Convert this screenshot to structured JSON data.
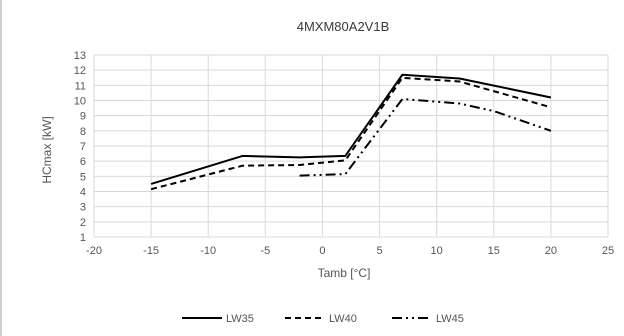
{
  "chart_data": {
    "type": "line",
    "title": "4MXM80A2V1B",
    "xlabel": "Tamb [°C]",
    "ylabel": "HCmax [kW]",
    "xlim": [
      -20,
      25
    ],
    "ylim": [
      1,
      13
    ],
    "xticks": [
      "-20",
      "-15",
      "-10",
      "-5",
      "0",
      "5",
      "10",
      "15",
      "20",
      "25"
    ],
    "yticks": [
      "1",
      "2",
      "3",
      "4",
      "5",
      "6",
      "7",
      "8",
      "9",
      "10",
      "11",
      "12",
      "13"
    ],
    "grid": true,
    "legend_position": "bottom",
    "series": [
      {
        "name": "LW35",
        "style": "solid",
        "color": "#000000",
        "points": [
          [
            -15,
            4.5
          ],
          [
            -7,
            6.35
          ],
          [
            -2,
            6.25
          ],
          [
            2,
            6.35
          ],
          [
            7,
            11.7
          ],
          [
            12,
            11.45
          ],
          [
            20,
            10.2
          ]
        ]
      },
      {
        "name": "LW40",
        "style": "dashed",
        "color": "#000000",
        "points": [
          [
            -15,
            4.15
          ],
          [
            -7,
            5.7
          ],
          [
            -2,
            5.75
          ],
          [
            2,
            6.05
          ],
          [
            7,
            11.5
          ],
          [
            12,
            11.25
          ],
          [
            20,
            9.55
          ]
        ]
      },
      {
        "name": "LW45",
        "style": "dashdotdot",
        "color": "#000000",
        "points": [
          [
            -2,
            5.05
          ],
          [
            2,
            5.15
          ],
          [
            7,
            10.1
          ],
          [
            12,
            9.8
          ],
          [
            15,
            9.3
          ],
          [
            20,
            8.0
          ]
        ]
      }
    ]
  }
}
